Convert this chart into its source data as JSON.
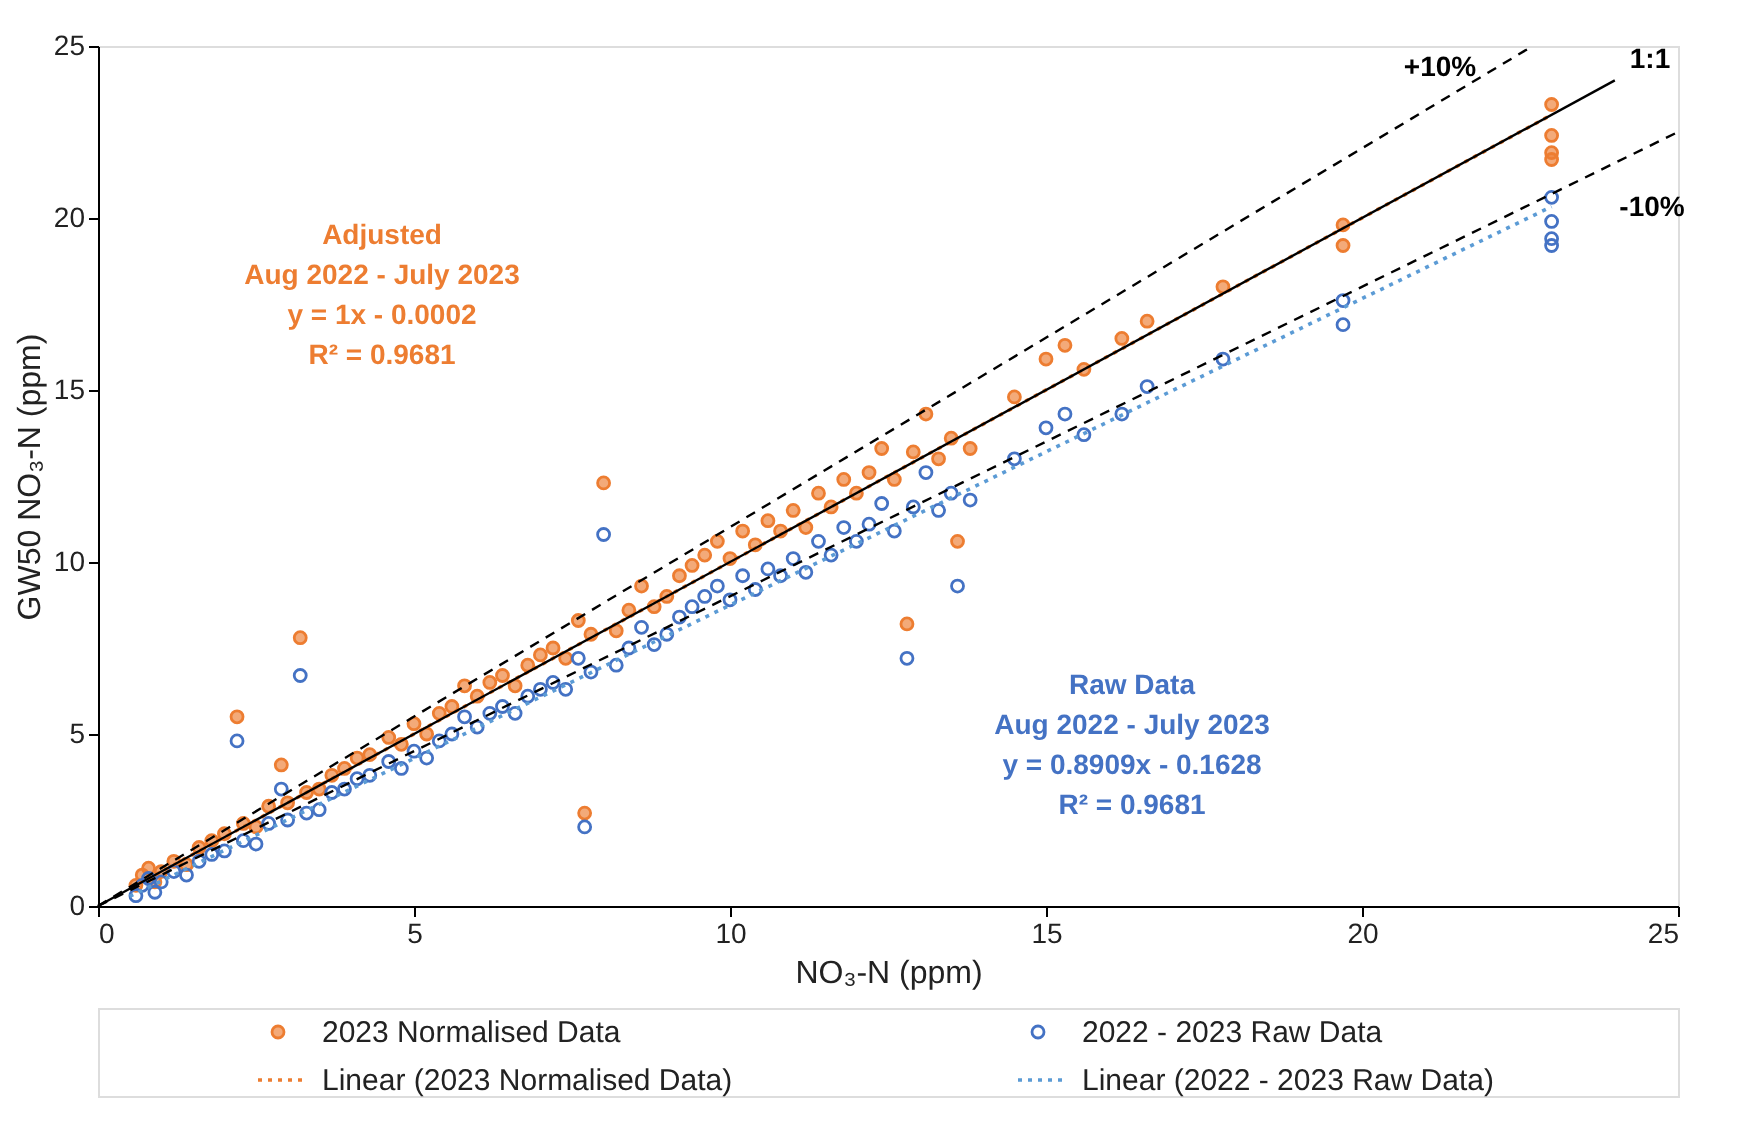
{
  "chart_data": {
    "type": "scatter",
    "xlabel": "NO₃-N (ppm)",
    "ylabel": "GW50 NO₃-N (ppm)",
    "xlim": [
      0,
      25
    ],
    "ylim": [
      0,
      25
    ],
    "xticks": [
      0,
      5,
      10,
      15,
      20,
      25
    ],
    "yticks": [
      0,
      5,
      10,
      15,
      20,
      25
    ],
    "grid": false,
    "legend": "bottom",
    "series": [
      {
        "name": "2023 Normalised Data",
        "marker": "circle",
        "color": "#ed7d31",
        "x": [
          0.6,
          0.7,
          0.8,
          0.9,
          1.0,
          1.2,
          1.4,
          1.6,
          1.8,
          2.0,
          2.2,
          2.3,
          2.5,
          2.7,
          2.9,
          3.0,
          3.2,
          3.3,
          3.5,
          3.7,
          3.9,
          4.1,
          4.3,
          4.6,
          4.8,
          5.0,
          5.2,
          5.4,
          5.6,
          5.8,
          6.0,
          6.2,
          6.4,
          6.6,
          6.8,
          7.0,
          7.2,
          7.4,
          7.6,
          7.7,
          7.8,
          8.0,
          8.2,
          8.4,
          8.6,
          8.8,
          9.0,
          9.2,
          9.4,
          9.6,
          9.8,
          10.0,
          10.2,
          10.4,
          10.6,
          10.8,
          11.0,
          11.2,
          11.4,
          11.6,
          11.8,
          12.0,
          12.2,
          12.4,
          12.6,
          12.8,
          12.9,
          13.1,
          13.3,
          13.5,
          13.6,
          13.8,
          14.5,
          15.0,
          15.3,
          15.6,
          16.2,
          16.6,
          17.8,
          19.7,
          19.7,
          23.0,
          23.0,
          23.0,
          23.0
        ],
        "values": [
          0.6,
          0.9,
          1.1,
          0.7,
          1.0,
          1.3,
          1.2,
          1.7,
          1.9,
          2.1,
          5.5,
          2.4,
          2.3,
          2.9,
          4.1,
          3.0,
          7.8,
          3.3,
          3.4,
          3.8,
          4.0,
          4.3,
          4.4,
          4.9,
          4.7,
          5.3,
          5.0,
          5.6,
          5.8,
          6.4,
          6.1,
          6.5,
          6.7,
          6.4,
          7.0,
          7.3,
          7.5,
          7.2,
          8.3,
          2.7,
          7.9,
          12.3,
          8.0,
          8.6,
          9.3,
          8.7,
          9.0,
          9.6,
          9.9,
          10.2,
          10.6,
          10.1,
          10.9,
          10.5,
          11.2,
          10.9,
          11.5,
          11.0,
          12.0,
          11.6,
          12.4,
          12.0,
          12.6,
          13.3,
          12.4,
          8.2,
          13.2,
          14.3,
          13.0,
          13.6,
          10.6,
          13.3,
          14.8,
          15.9,
          16.3,
          15.6,
          16.5,
          17.0,
          18.0,
          19.8,
          19.2,
          23.3,
          22.4,
          21.9,
          21.7
        ]
      },
      {
        "name": "2022 - 2023 Raw Data",
        "marker": "circle",
        "color": "#4472c4",
        "x": [
          0.6,
          0.7,
          0.8,
          0.9,
          1.0,
          1.2,
          1.4,
          1.6,
          1.8,
          2.0,
          2.2,
          2.3,
          2.5,
          2.7,
          2.9,
          3.0,
          3.2,
          3.3,
          3.5,
          3.7,
          3.9,
          4.1,
          4.3,
          4.6,
          4.8,
          5.0,
          5.2,
          5.4,
          5.6,
          5.8,
          6.0,
          6.2,
          6.4,
          6.6,
          6.8,
          7.0,
          7.2,
          7.4,
          7.6,
          7.7,
          7.8,
          8.0,
          8.2,
          8.4,
          8.6,
          8.8,
          9.0,
          9.2,
          9.4,
          9.6,
          9.8,
          10.0,
          10.2,
          10.4,
          10.6,
          10.8,
          11.0,
          11.2,
          11.4,
          11.6,
          11.8,
          12.0,
          12.2,
          12.4,
          12.6,
          12.8,
          12.9,
          13.1,
          13.3,
          13.5,
          13.6,
          13.8,
          14.5,
          15.0,
          15.3,
          15.6,
          16.2,
          16.6,
          17.8,
          19.7,
          19.7,
          23.0,
          23.0,
          23.0,
          23.0
        ],
        "values": [
          0.3,
          0.6,
          0.8,
          0.4,
          0.7,
          1.0,
          0.9,
          1.3,
          1.5,
          1.6,
          4.8,
          1.9,
          1.8,
          2.4,
          3.4,
          2.5,
          6.7,
          2.7,
          2.8,
          3.3,
          3.4,
          3.7,
          3.8,
          4.2,
          4.0,
          4.5,
          4.3,
          4.8,
          5.0,
          5.5,
          5.2,
          5.6,
          5.8,
          5.6,
          6.1,
          6.3,
          6.5,
          6.3,
          7.2,
          2.3,
          6.8,
          10.8,
          7.0,
          7.5,
          8.1,
          7.6,
          7.9,
          8.4,
          8.7,
          9.0,
          9.3,
          8.9,
          9.6,
          9.2,
          9.8,
          9.6,
          10.1,
          9.7,
          10.6,
          10.2,
          11.0,
          10.6,
          11.1,
          11.7,
          10.9,
          7.2,
          11.6,
          12.6,
          11.5,
          12.0,
          9.3,
          11.8,
          13.0,
          13.9,
          14.3,
          13.7,
          14.3,
          15.1,
          15.9,
          17.6,
          16.9,
          20.6,
          19.9,
          19.4,
          19.2
        ]
      },
      {
        "name": "Linear (2023 Normalised Data)",
        "type": "line",
        "color": "#ed7d31",
        "line_style": "dotted",
        "x": [
          0.5,
          23
        ],
        "values": [
          0.5,
          23
        ]
      },
      {
        "name": "Linear (2022 - 2023 Raw Data)",
        "type": "line",
        "color": "#5b9bd5",
        "line_style": "dotted",
        "x": [
          0.5,
          23
        ],
        "values": [
          0.28,
          20.33
        ]
      },
      {
        "type": "line",
        "color": "#000000",
        "line_style": "solid",
        "x": [
          0,
          24
        ],
        "values": [
          0,
          24
        ]
      },
      {
        "type": "line",
        "color": "#000000",
        "line_style": "dashed",
        "x": [
          0,
          22.7
        ],
        "values": [
          0,
          25
        ]
      },
      {
        "type": "line",
        "color": "#000000",
        "line_style": "dashed",
        "x": [
          0,
          25
        ],
        "values": [
          0,
          22.5
        ]
      }
    ],
    "annotations": [
      "+10%",
      "1:1",
      "-10%",
      "Adjusted\nAug 2022 - July 2023\ny = 1x - 0.0002\nR² = 0.9681",
      "Raw Data\nAug 2022 - July 2023\ny = 0.8909x - 0.1628\nR² = 0.9681"
    ]
  }
}
